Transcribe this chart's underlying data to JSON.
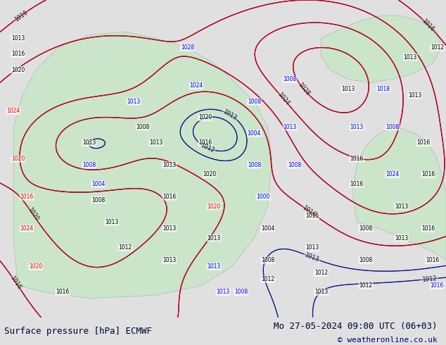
{
  "title_left": "Surface pressure [hPa] ECMWF",
  "title_right": "Mo 27-05-2024 09:00 UTC (06+03)",
  "copyright": "© weatheronline.co.uk",
  "bg_color": "#e8e8e8",
  "map_bg_color": "#ddeeff",
  "land_color": "#c8e6c8",
  "figsize": [
    6.34,
    4.9
  ],
  "dpi": 100,
  "bottom_text_color": "#000033",
  "copyright_color": "#000080"
}
